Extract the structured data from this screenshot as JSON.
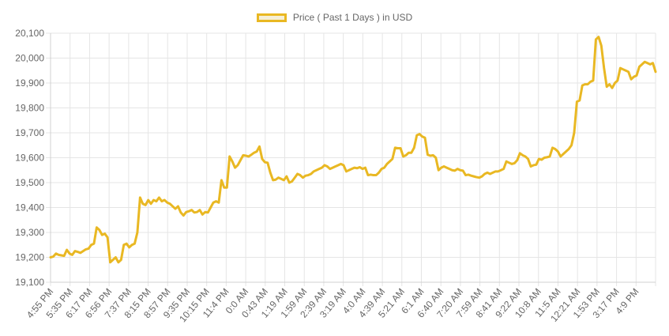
{
  "chart_data": {
    "type": "line",
    "title": "",
    "xlabel": "",
    "ylabel": "",
    "ylim": [
      19100,
      20100
    ],
    "yticks": [
      19100,
      19200,
      19300,
      19400,
      19500,
      19600,
      19700,
      19800,
      19900,
      20000,
      20100
    ],
    "ytick_labels": [
      "19,100",
      "19,200",
      "19,300",
      "19,400",
      "19,500",
      "19,600",
      "19,700",
      "19,800",
      "19,900",
      "20,000",
      "20,100"
    ],
    "x_tick_labels": [
      "4:55 PM",
      "5:35 PM",
      "6:17 PM",
      "6:56 PM",
      "7:37 PM",
      "8:15 PM",
      "8:57 PM",
      "9:35 PM",
      "10:15 PM",
      "11:4 PM",
      "0:0 AM",
      "0:43 AM",
      "1:19 AM",
      "1:59 AM",
      "2:39 AM",
      "3:19 AM",
      "4:0 AM",
      "4:39 AM",
      "5:21 AM",
      "6:1 AM",
      "6:40 AM",
      "7:20 AM",
      "7:59 AM",
      "8:41 AM",
      "9:22 AM",
      "10:8 AM",
      "11:5 AM",
      "12:21 AM",
      "1:53 PM",
      "3:17 PM",
      "4:9 PM"
    ],
    "grid": true,
    "legend_position": "top-center",
    "line_color": "#e9b823",
    "fill_color": "#f6efd6",
    "series": [
      {
        "name": "Price ( Past 1 Days ) in USD",
        "values": [
          19200,
          19203,
          19215,
          19210,
          19208,
          19206,
          19230,
          19215,
          19210,
          19225,
          19222,
          19218,
          19225,
          19232,
          19235,
          19250,
          19255,
          19320,
          19310,
          19290,
          19295,
          19280,
          19180,
          19190,
          19200,
          19180,
          19190,
          19250,
          19255,
          19240,
          19250,
          19255,
          19300,
          19440,
          19415,
          19410,
          19430,
          19415,
          19430,
          19425,
          19440,
          19425,
          19430,
          19420,
          19415,
          19405,
          19395,
          19405,
          19380,
          19368,
          19382,
          19385,
          19390,
          19380,
          19382,
          19390,
          19372,
          19382,
          19380,
          19400,
          19420,
          19425,
          19420,
          19510,
          19480,
          19480,
          19605,
          19585,
          19560,
          19570,
          19590,
          19610,
          19608,
          19605,
          19612,
          19620,
          19625,
          19645,
          19595,
          19582,
          19580,
          19540,
          19510,
          19512,
          19520,
          19515,
          19510,
          19525,
          19500,
          19505,
          19520,
          19535,
          19530,
          19520,
          19528,
          19530,
          19535,
          19545,
          19550,
          19555,
          19560,
          19570,
          19565,
          19555,
          19560,
          19565,
          19570,
          19575,
          19570,
          19545,
          19550,
          19555,
          19560,
          19558,
          19562,
          19555,
          19560,
          19530,
          19532,
          19530,
          19530,
          19540,
          19555,
          19560,
          19575,
          19585,
          19595,
          19640,
          19638,
          19638,
          19605,
          19610,
          19620,
          19620,
          19640,
          19690,
          19695,
          19685,
          19680,
          19612,
          19608,
          19610,
          19600,
          19550,
          19560,
          19565,
          19560,
          19555,
          19550,
          19548,
          19555,
          19550,
          19548,
          19530,
          19532,
          19528,
          19525,
          19522,
          19520,
          19525,
          19535,
          19540,
          19535,
          19540,
          19545,
          19545,
          19550,
          19555,
          19585,
          19580,
          19575,
          19578,
          19590,
          19618,
          19610,
          19605,
          19595,
          19565,
          19570,
          19572,
          19595,
          19592,
          19600,
          19602,
          19605,
          19640,
          19635,
          19625,
          19605,
          19615,
          19625,
          19635,
          19650,
          19700,
          19825,
          19830,
          19890,
          19895,
          19895,
          19905,
          19910,
          20075,
          20085,
          20050,
          19960,
          19885,
          19895,
          19880,
          19900,
          19910,
          19960,
          19955,
          19950,
          19945,
          19915,
          19925,
          19930,
          19965,
          19975,
          19985,
          19980,
          19975,
          19980,
          19945
        ]
      }
    ]
  }
}
